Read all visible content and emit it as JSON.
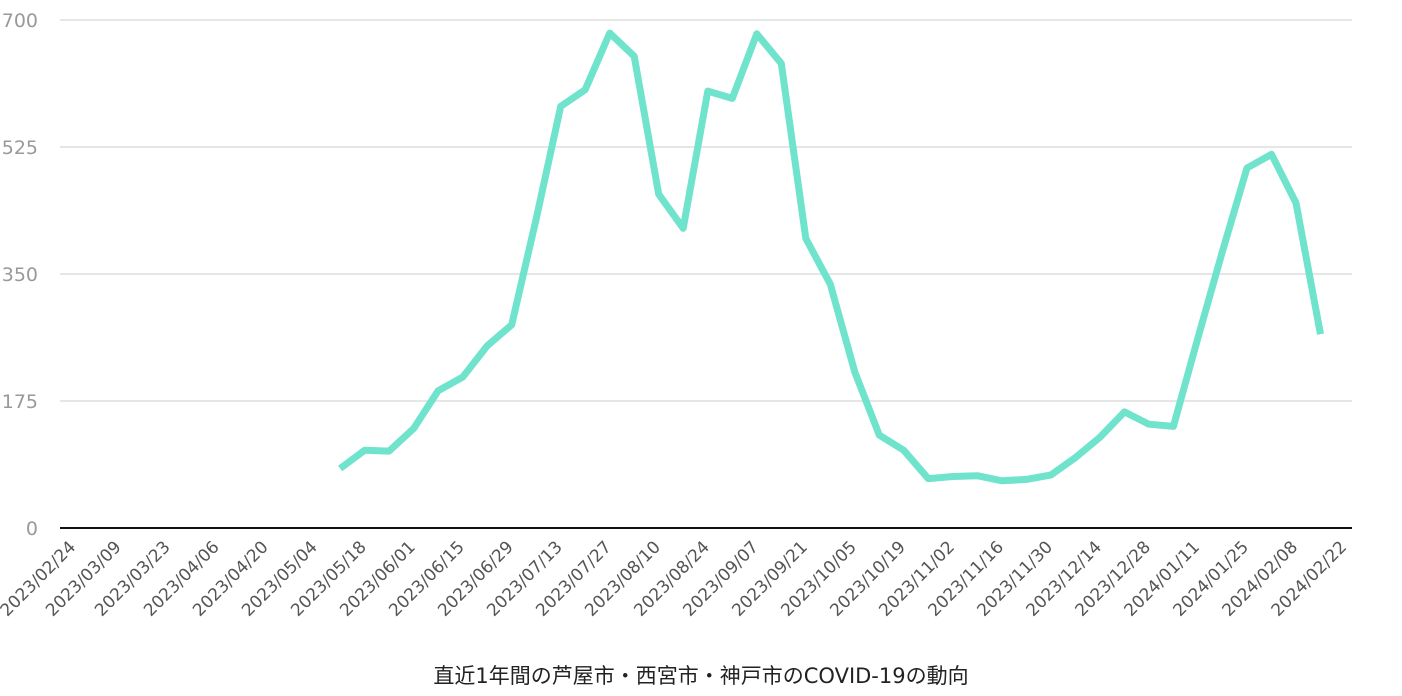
{
  "chart_data": {
    "type": "line",
    "title": "直近1年間の芦屋市・西宮市・神戸市のCOVID-19の動向",
    "xlabel": "",
    "ylabel": "",
    "ylim": [
      0,
      700
    ],
    "yticks": [
      "0",
      "175",
      "350",
      "525",
      "700"
    ],
    "grid": true,
    "legend": "none",
    "line_color": "#6fe3cc",
    "x_tick_labels": [
      "2023/02/24",
      "2023/03/09",
      "2023/03/23",
      "2023/04/06",
      "2023/04/20",
      "2023/05/04",
      "2023/05/18",
      "2023/06/01",
      "2023/06/15",
      "2023/06/29",
      "2023/07/13",
      "2023/07/27",
      "2023/08/10",
      "2023/08/24",
      "2023/09/07",
      "2023/09/21",
      "2023/10/05",
      "2023/10/19",
      "2023/11/02",
      "2023/11/16",
      "2023/11/30",
      "2023/12/14",
      "2023/12/28",
      "2024/01/11",
      "2024/01/25",
      "2024/02/08",
      "2024/02/22"
    ],
    "series": [
      {
        "x": [
          "2023/05/12",
          "2023/05/19",
          "2023/05/26",
          "2023/06/02",
          "2023/06/09",
          "2023/06/16",
          "2023/06/23",
          "2023/06/30",
          "2023/07/07",
          "2023/07/14",
          "2023/07/21",
          "2023/07/28",
          "2023/08/04",
          "2023/08/11",
          "2023/08/18",
          "2023/08/25",
          "2023/09/01",
          "2023/09/08",
          "2023/09/15",
          "2023/09/22",
          "2023/09/29",
          "2023/10/06",
          "2023/10/13",
          "2023/10/20",
          "2023/10/27",
          "2023/11/03",
          "2023/11/10",
          "2023/11/17",
          "2023/11/24",
          "2023/12/01",
          "2023/12/08",
          "2023/12/15",
          "2023/12/22",
          "2023/12/29",
          "2024/01/05",
          "2024/01/12",
          "2024/01/19",
          "2024/01/26",
          "2024/02/02",
          "2024/02/09",
          "2024/02/16"
        ],
        "values": [
          82,
          107,
          106,
          137,
          189,
          208,
          251,
          280,
          426,
          581,
          604,
          682,
          650,
          460,
          413,
          602,
          592,
          681,
          640,
          399,
          336,
          215,
          128,
          107,
          68,
          71,
          72,
          65,
          67,
          73,
          97,
          125,
          160,
          143,
          140,
          262,
          381,
          496,
          515,
          448,
          267
        ]
      }
    ]
  }
}
